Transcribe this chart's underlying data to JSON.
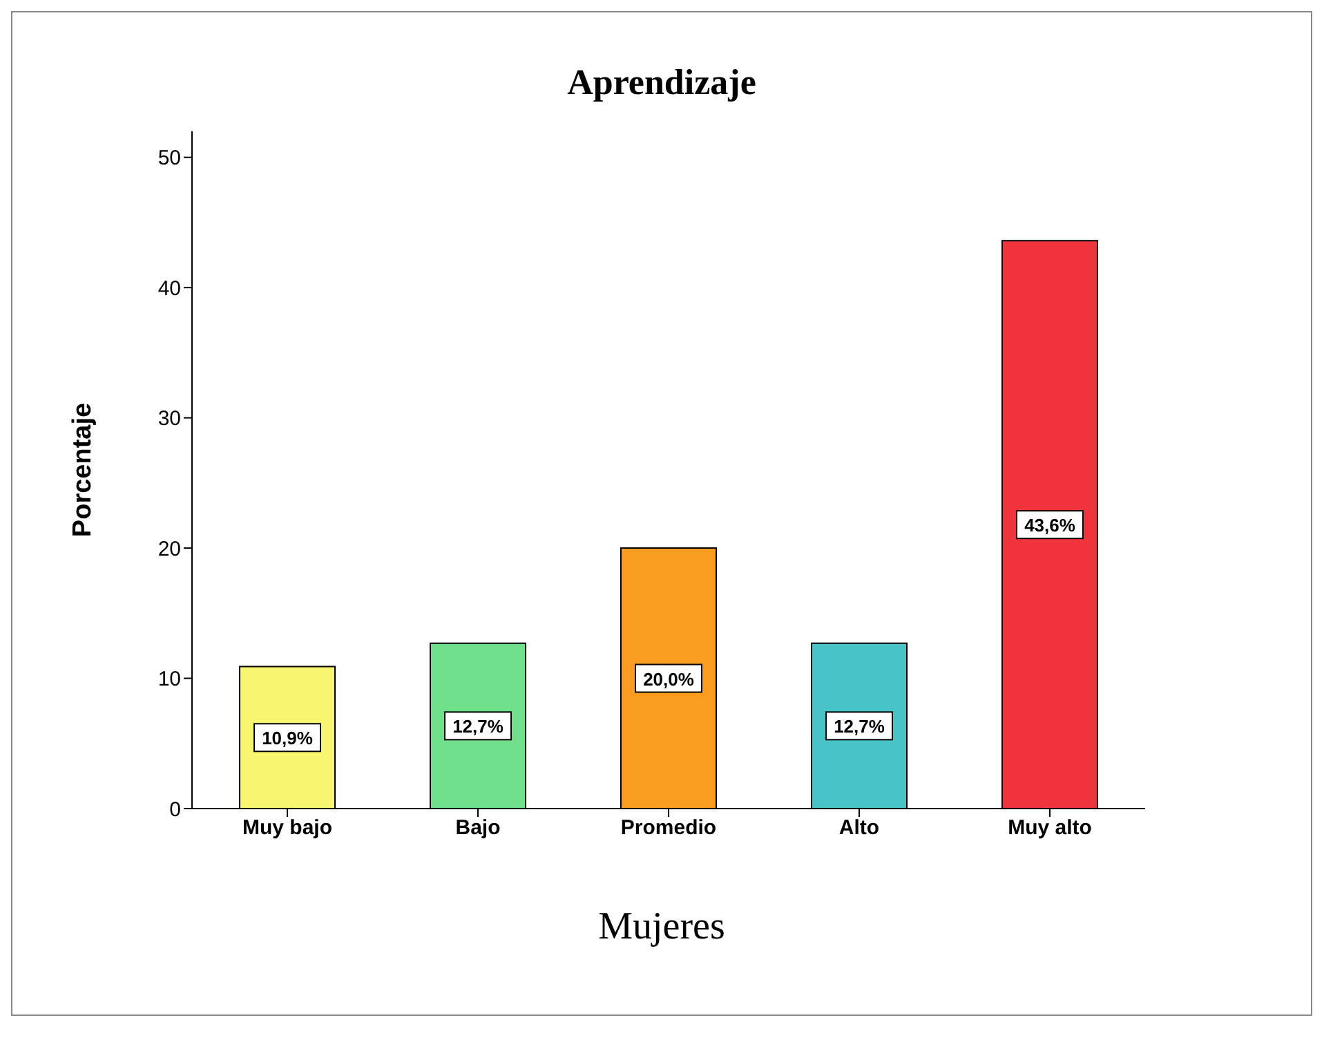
{
  "chart_data": {
    "type": "bar",
    "title": "Aprendizaje",
    "xlabel": "Mujeres",
    "ylabel": "Porcentaje",
    "categories": [
      "Muy bajo",
      "Bajo",
      "Promedio",
      "Alto",
      "Muy alto"
    ],
    "values": [
      10.9,
      12.7,
      20.0,
      12.7,
      43.6
    ],
    "value_labels": [
      "10,9%",
      "12,7%",
      "20,0%",
      "12,7%",
      "43,6%"
    ],
    "colors": [
      "#f8f56f",
      "#6fe08a",
      "#f99c1f",
      "#48c4c9",
      "#f0343c"
    ],
    "ylim": [
      0,
      52
    ],
    "yticks": [
      0,
      10,
      20,
      30,
      40,
      50
    ],
    "grid": false,
    "legend": false
  }
}
